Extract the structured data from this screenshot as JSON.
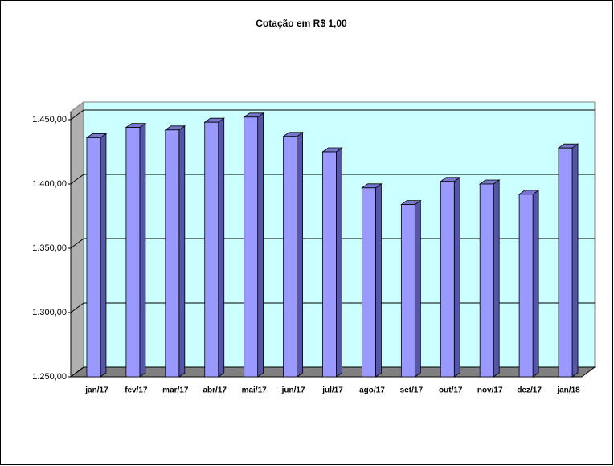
{
  "chart_data": {
    "type": "bar3d",
    "title": "Cotação em R$ 1,00",
    "categories": [
      "jan/17",
      "fev/17",
      "mar/17",
      "abr/17",
      "mai/17",
      "jun/17",
      "jul/17",
      "ago/17",
      "set/17",
      "out/17",
      "nov/17",
      "dez/17",
      "jan/18"
    ],
    "values": [
      1436,
      1444,
      1442,
      1448,
      1452,
      1437,
      1425,
      1397,
      1384,
      1402,
      1400,
      1392,
      1428
    ],
    "color": "#9999ff",
    "ylim": [
      1250,
      1450
    ],
    "yticks": [
      {
        "value": 1250,
        "label": "1.250,00"
      },
      {
        "value": 1300,
        "label": "1.300,00"
      },
      {
        "value": 1350,
        "label": "1.350,00"
      },
      {
        "value": 1400,
        "label": "1.400,00"
      },
      {
        "value": 1450,
        "label": "1.450,00"
      }
    ],
    "grid": true
  }
}
